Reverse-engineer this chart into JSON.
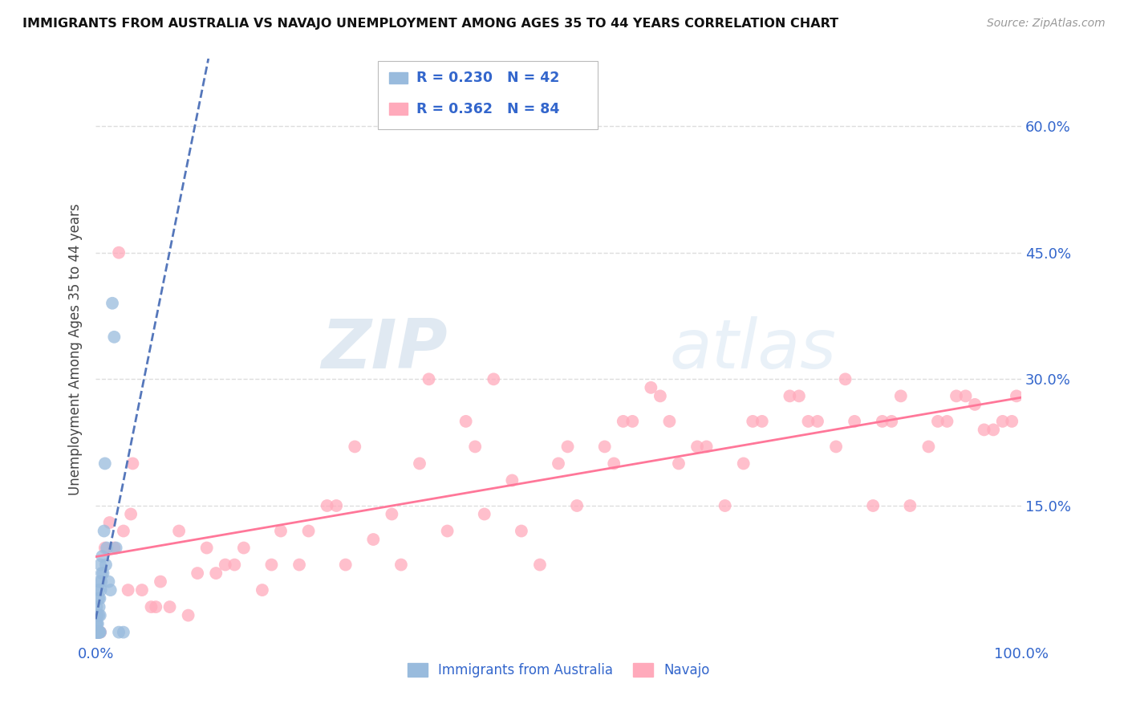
{
  "title": "IMMIGRANTS FROM AUSTRALIA VS NAVAJO UNEMPLOYMENT AMONG AGES 35 TO 44 YEARS CORRELATION CHART",
  "source": "Source: ZipAtlas.com",
  "ylabel": "Unemployment Among Ages 35 to 44 years",
  "xlim": [
    0,
    100
  ],
  "ylim": [
    -1,
    68
  ],
  "xtick_labels": [
    "0.0%",
    "100.0%"
  ],
  "xtick_positions": [
    0,
    100
  ],
  "ytick_positions": [
    15,
    30,
    45,
    60
  ],
  "right_ytick_labels": [
    "15.0%",
    "30.0%",
    "45.0%",
    "60.0%"
  ],
  "legend_r1": "R = 0.230",
  "legend_n1": "N = 42",
  "legend_r2": "R = 0.362",
  "legend_n2": "N = 84",
  "legend_label1": "Immigrants from Australia",
  "legend_label2": "Navajo",
  "color_blue": "#99BBDD",
  "color_pink": "#FFAABB",
  "color_blue_line": "#5577BB",
  "color_pink_line": "#FF7799",
  "color_legend_text": "#3366CC",
  "watermark_zip": "ZIP",
  "watermark_atlas": "atlas",
  "background_color": "#FFFFFF",
  "grid_color": "#DDDDDD",
  "australia_x": [
    0.05,
    0.08,
    0.1,
    0.12,
    0.15,
    0.18,
    0.2,
    0.22,
    0.25,
    0.28,
    0.3,
    0.32,
    0.35,
    0.38,
    0.4,
    0.42,
    0.45,
    0.48,
    0.5,
    0.55,
    0.6,
    0.65,
    0.7,
    0.8,
    0.9,
    1.0,
    1.1,
    1.2,
    1.4,
    1.6,
    1.8,
    2.0,
    2.2,
    2.5,
    0.05,
    0.1,
    0.15,
    0.2,
    0.3,
    0.4,
    0.5,
    3.0
  ],
  "australia_y": [
    2.0,
    0.0,
    3.0,
    1.0,
    0.0,
    2.0,
    0.0,
    1.0,
    0.0,
    0.0,
    5.0,
    4.0,
    2.0,
    3.0,
    6.0,
    0.0,
    4.0,
    2.0,
    8.0,
    5.0,
    6.0,
    7.0,
    9.0,
    7.0,
    12.0,
    20.0,
    8.0,
    10.0,
    6.0,
    5.0,
    39.0,
    35.0,
    10.0,
    0.0,
    0.0,
    1.0,
    0.0,
    0.0,
    0.0,
    0.0,
    0.0,
    0.0
  ],
  "navajo_x": [
    1.5,
    2.0,
    3.0,
    3.5,
    5.0,
    6.0,
    8.0,
    10.0,
    12.0,
    15.0,
    18.0,
    20.0,
    22.0,
    25.0,
    28.0,
    30.0,
    33.0,
    35.0,
    38.0,
    40.0,
    42.0,
    45.0,
    48.0,
    50.0,
    52.0,
    55.0,
    57.0,
    60.0,
    62.0,
    65.0,
    68.0,
    70.0,
    72.0,
    75.0,
    77.0,
    80.0,
    82.0,
    85.0,
    87.0,
    90.0,
    92.0,
    95.0,
    97.0,
    99.0,
    2.5,
    4.0,
    7.0,
    11.0,
    14.0,
    16.0,
    19.0,
    23.0,
    27.0,
    32.0,
    36.0,
    41.0,
    46.0,
    51.0,
    56.0,
    61.0,
    66.0,
    71.0,
    76.0,
    81.0,
    86.0,
    91.0,
    93.0,
    96.0,
    98.0,
    3.8,
    9.0,
    26.0,
    43.0,
    58.0,
    63.0,
    78.0,
    84.0,
    88.0,
    94.0,
    99.5,
    1.0,
    0.5,
    6.5,
    13.0
  ],
  "navajo_y": [
    13.0,
    10.0,
    12.0,
    5.0,
    5.0,
    3.0,
    3.0,
    2.0,
    10.0,
    8.0,
    5.0,
    12.0,
    8.0,
    15.0,
    22.0,
    11.0,
    8.0,
    20.0,
    12.0,
    25.0,
    14.0,
    18.0,
    8.0,
    20.0,
    15.0,
    22.0,
    25.0,
    29.0,
    25.0,
    22.0,
    15.0,
    20.0,
    25.0,
    28.0,
    25.0,
    22.0,
    25.0,
    25.0,
    28.0,
    22.0,
    25.0,
    27.0,
    24.0,
    25.0,
    45.0,
    20.0,
    6.0,
    7.0,
    8.0,
    10.0,
    8.0,
    12.0,
    8.0,
    14.0,
    30.0,
    22.0,
    12.0,
    22.0,
    20.0,
    28.0,
    22.0,
    25.0,
    28.0,
    30.0,
    25.0,
    25.0,
    28.0,
    24.0,
    25.0,
    14.0,
    12.0,
    15.0,
    30.0,
    25.0,
    20.0,
    25.0,
    15.0,
    15.0,
    28.0,
    28.0,
    10.0,
    0.0,
    3.0,
    7.0
  ]
}
